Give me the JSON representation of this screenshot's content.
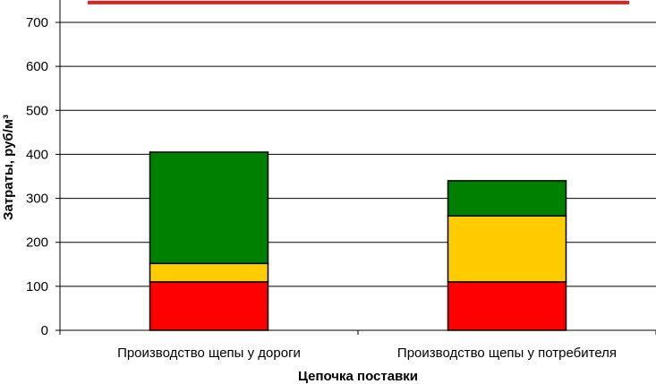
{
  "chart_data": {
    "type": "bar",
    "stacked": true,
    "categories": [
      "Производство щепы у дороги",
      "Производство щепы у потребителя"
    ],
    "series": [
      {
        "values": [
          110,
          110
        ],
        "color": "#ff0000"
      },
      {
        "values": [
          42,
          150
        ],
        "color": "#ffcc00"
      },
      {
        "values": [
          253,
          80
        ],
        "color": "#008000"
      }
    ],
    "reference_line": {
      "value": 745,
      "color": "#e02020"
    },
    "xlabel": "Цепочка поставки",
    "ylabel": "Затраты, руб/м³",
    "ylim": [
      0,
      750
    ],
    "yticks": [
      0,
      100,
      200,
      300,
      400,
      500,
      600,
      700
    ],
    "grid": true
  }
}
